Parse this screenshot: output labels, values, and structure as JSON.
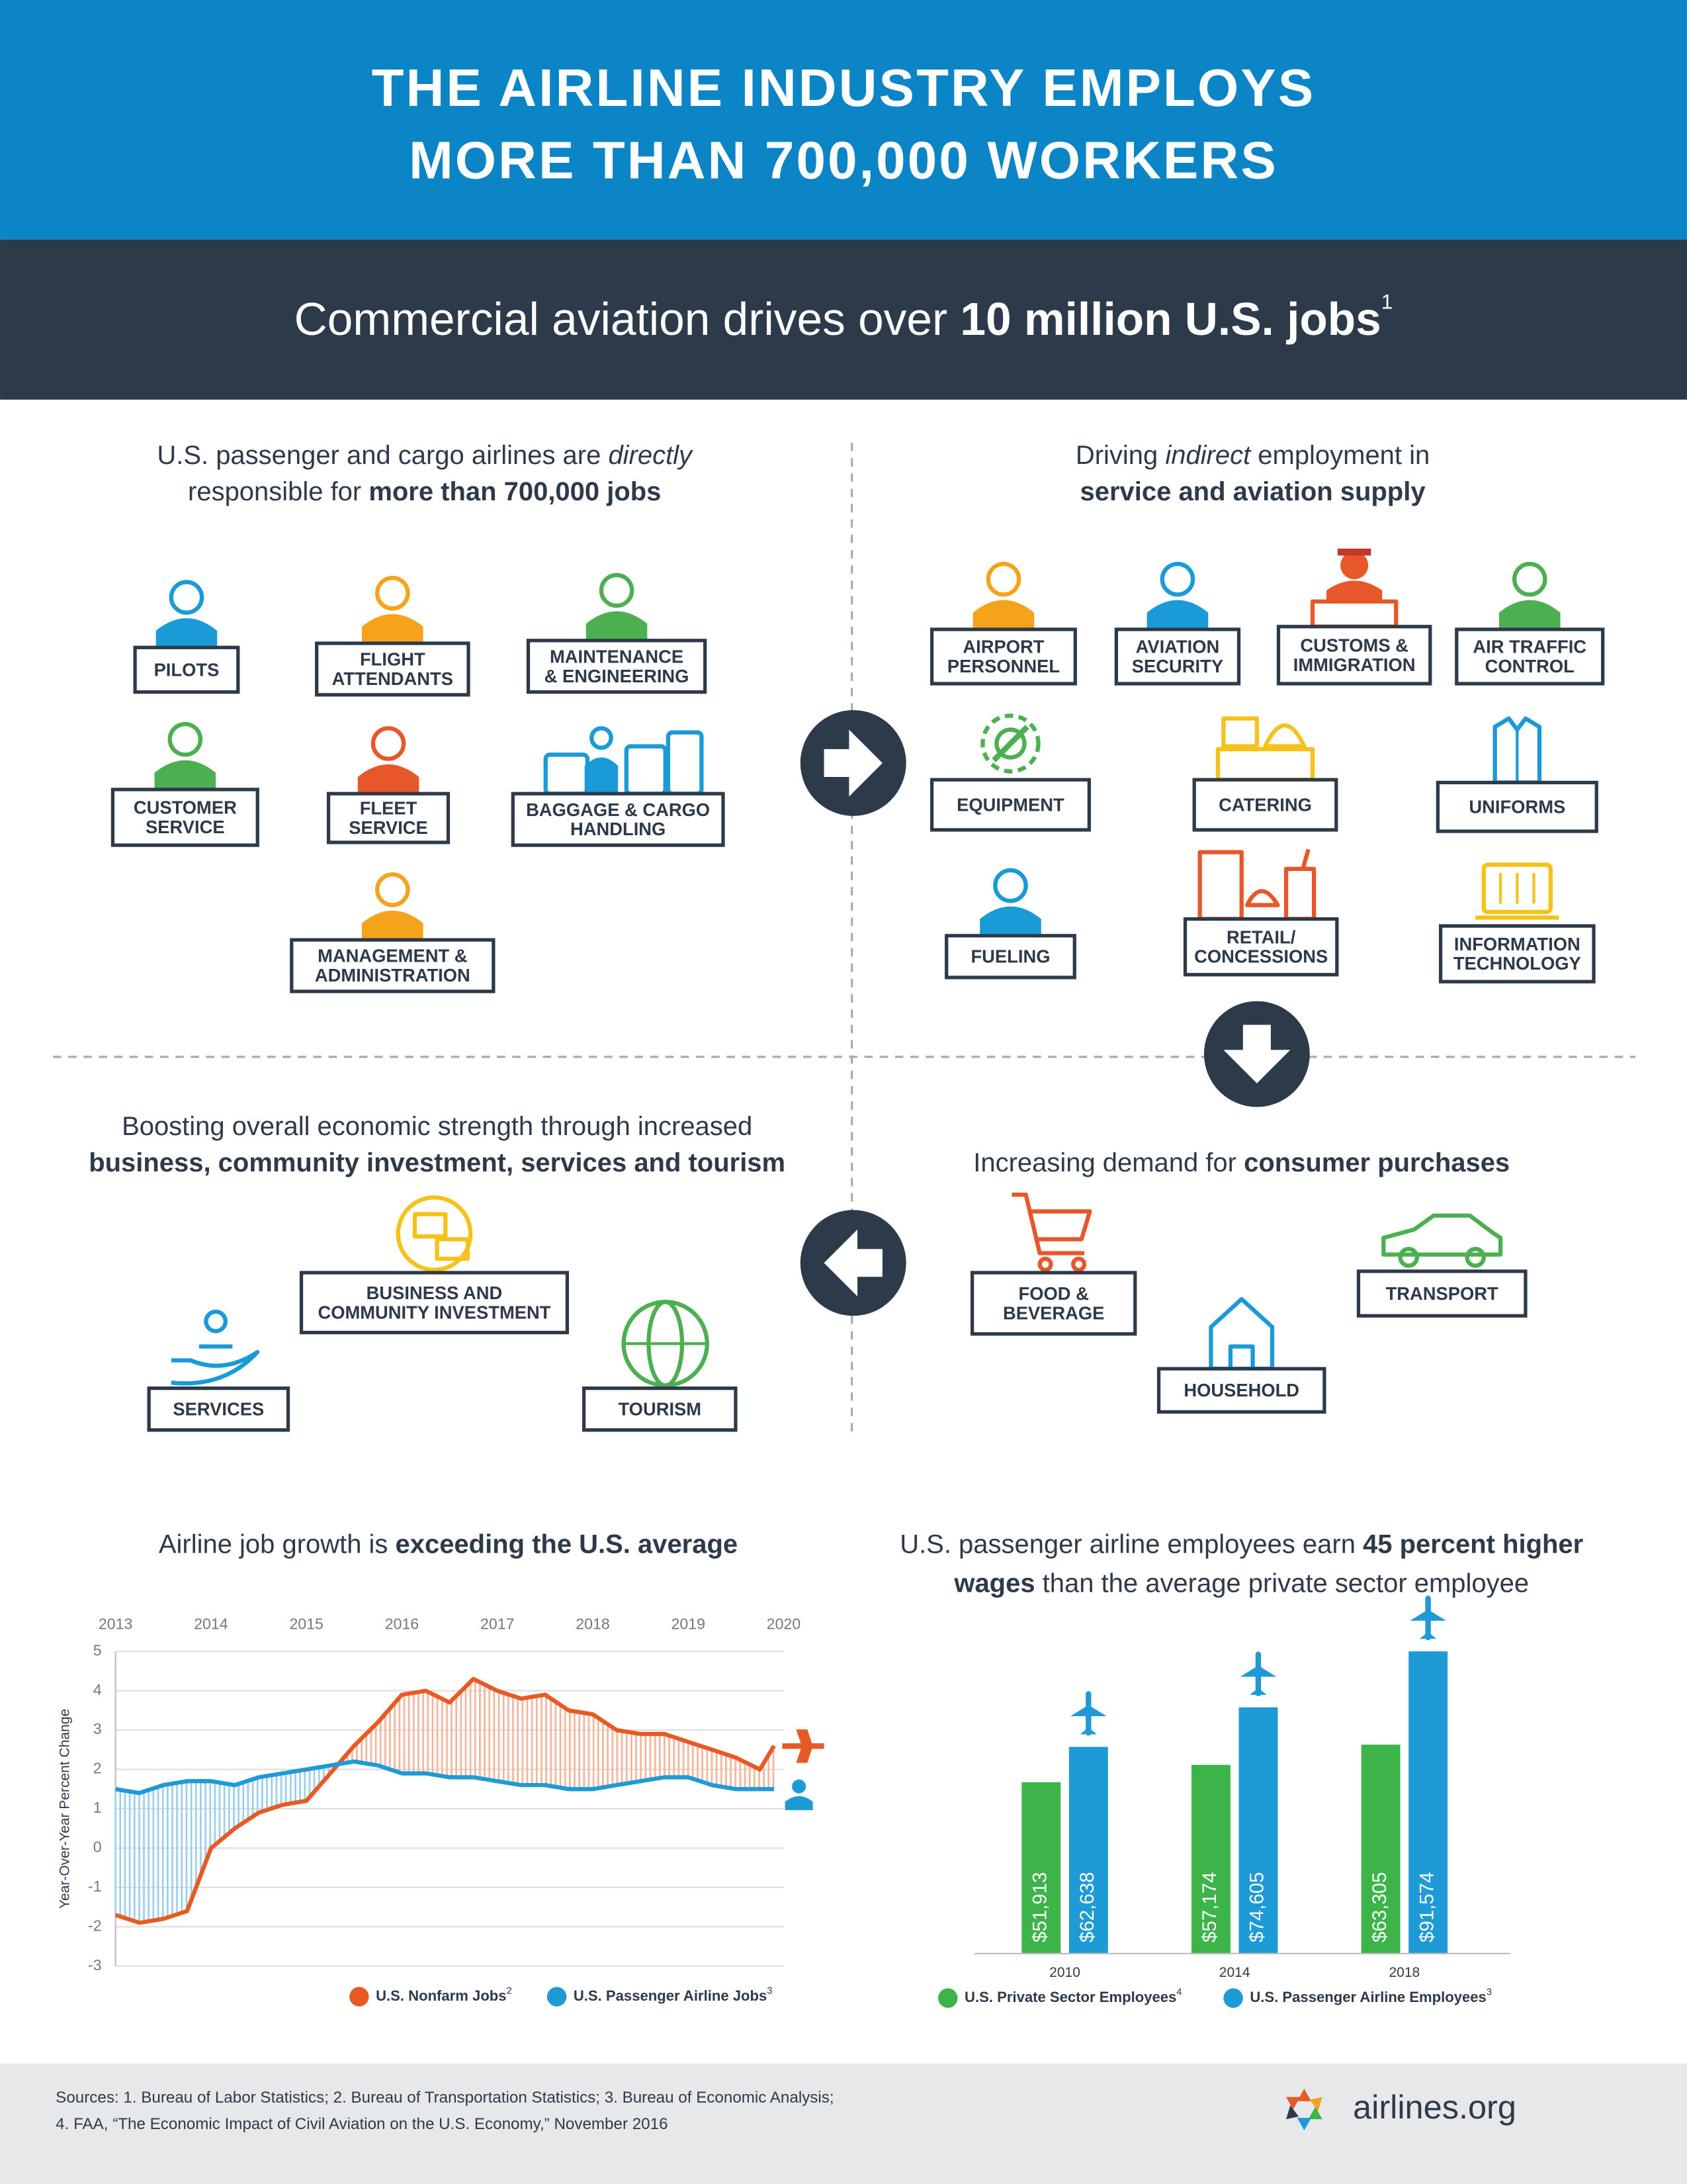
{
  "header": {
    "title": [
      "THE AIRLINE INDUSTRY EMPLOYS",
      "MORE THAN 700,000 WORKERS"
    ]
  },
  "banner": {
    "text": "Commercial aviation drives over ",
    "bold": "10 million U.S. jobs",
    "note": "1"
  },
  "quadrants": [
    {
      "intro": [
        [
          {
            "text": "U.S. passenger and cargo airlines are "
          },
          {
            "text": "directly",
            "emphasis": "italic"
          }
        ],
        [
          {
            "text": "responsible for "
          },
          {
            "text": "more than 700,000 jobs",
            "emphasis": "bold"
          }
        ]
      ],
      "items": [
        {
          "lines": [
            "PILOTS"
          ]
        },
        {
          "lines": [
            "FLIGHT",
            "ATTENDANTS"
          ]
        },
        {
          "lines": [
            "MAINTENANCE",
            "& ENGINEERING"
          ]
        },
        {
          "lines": [
            "CUSTOMER",
            "SERVICE"
          ]
        },
        {
          "lines": [
            "FLEET",
            "SERVICE"
          ]
        },
        {
          "lines": [
            "BAGGAGE & CARGO",
            "HANDLING"
          ]
        },
        {
          "lines": [
            "MANAGEMENT &",
            "ADMINISTRATION"
          ]
        }
      ]
    },
    {
      "intro": [
        [
          {
            "text": "Driving "
          },
          {
            "text": "indirect",
            "emphasis": "italic"
          },
          {
            "text": " employment in"
          }
        ],
        [
          {
            "text": "service and aviation supply",
            "emphasis": "bold"
          }
        ]
      ],
      "items": [
        {
          "lines": [
            "AIRPORT",
            "PERSONNEL"
          ]
        },
        {
          "lines": [
            "AVIATION",
            "SECURITY"
          ]
        },
        {
          "lines": [
            "CUSTOMS &",
            "IMMIGRATION"
          ]
        },
        {
          "lines": [
            "AIR TRAFFIC",
            "CONTROL"
          ]
        },
        {
          "lines": [
            "EQUIPMENT"
          ]
        },
        {
          "lines": [
            "CATERING"
          ]
        },
        {
          "lines": [
            "UNIFORMS"
          ]
        },
        {
          "lines": [
            "FUELING"
          ]
        },
        {
          "lines": [
            "RETAIL/",
            "CONCESSIONS"
          ]
        },
        {
          "lines": [
            "INFORMATION",
            "TECHNOLOGY"
          ]
        }
      ]
    },
    {
      "intro": [
        [
          {
            "text": "Boosting overall economic strength through increased"
          }
        ],
        [
          {
            "text": "business, community investment, services and tourism",
            "emphasis": "bold"
          }
        ]
      ],
      "items": [
        {
          "lines": [
            "BUSINESS AND",
            "COMMUNITY INVESTMENT"
          ]
        },
        {
          "lines": [
            "SERVICES"
          ]
        },
        {
          "lines": [
            "TOURISM"
          ]
        }
      ]
    },
    {
      "intro": [
        [
          {
            "text": "Increasing demand for "
          },
          {
            "text": "consumer purchases",
            "emphasis": "bold"
          }
        ]
      ],
      "items": [
        {
          "lines": [
            "FOOD &",
            "BEVERAGE"
          ]
        },
        {
          "lines": [
            "TRANSPORT"
          ]
        },
        {
          "lines": [
            "HOUSEHOLD"
          ]
        }
      ]
    }
  ],
  "chart_data": [
    {
      "type": "line",
      "title": [
        {
          "text": "Airline job growth is "
        },
        {
          "text": "exceeding the U.S. average",
          "emphasis": "bold"
        }
      ],
      "y_label": "Year-Over-Year Percent Change",
      "xlim": [
        2013,
        2020
      ],
      "xticks": [
        2013,
        2014,
        2015,
        2016,
        2017,
        2018,
        2019,
        2020
      ],
      "ylim": [
        -3,
        5
      ],
      "yticks": [
        -3,
        -2,
        -1,
        0,
        1,
        2,
        3,
        4,
        5
      ],
      "grid": true,
      "x": [
        2013,
        2013.25,
        2013.5,
        2013.75,
        2014,
        2014.25,
        2014.5,
        2014.75,
        2015,
        2015.25,
        2015.5,
        2015.75,
        2016,
        2016.25,
        2016.5,
        2016.75,
        2017,
        2017.25,
        2017.5,
        2017.75,
        2018,
        2018.25,
        2018.5,
        2018.75,
        2019,
        2019.25,
        2019.5,
        2019.75,
        2019.9
      ],
      "series": [
        {
          "name": "U.S. Nonfarm Jobs",
          "note": "2",
          "color": "#e85a24",
          "values": [
            -1.7,
            -1.9,
            -1.8,
            -1.6,
            0.0,
            0.5,
            0.9,
            1.1,
            1.2,
            1.9,
            2.6,
            3.2,
            3.9,
            4.0,
            3.7,
            4.3,
            4.0,
            3.8,
            3.9,
            3.5,
            3.4,
            3.0,
            2.9,
            2.9,
            2.7,
            2.5,
            2.3,
            2.0,
            2.6
          ]
        },
        {
          "name": "U.S. Passenger Airline Jobs",
          "note": "3",
          "color": "#1e9ad6",
          "values": [
            1.5,
            1.4,
            1.6,
            1.7,
            1.7,
            1.6,
            1.8,
            1.9,
            2.0,
            2.1,
            2.2,
            2.1,
            1.9,
            1.9,
            1.8,
            1.8,
            1.7,
            1.6,
            1.6,
            1.5,
            1.5,
            1.6,
            1.7,
            1.8,
            1.8,
            1.6,
            1.5,
            1.5,
            1.5
          ]
        }
      ]
    },
    {
      "type": "bar",
      "title": [
        {
          "text": "U.S. passenger airline employees earn "
        },
        {
          "text": "45 percent higher",
          "emphasis": "bold"
        },
        {
          "break": true,
          "text": "wages",
          "emphasis": "bold"
        },
        {
          "text": " than the average private sector employee"
        }
      ],
      "categories": [
        "2010",
        "2014",
        "2018"
      ],
      "ylim": [
        0,
        100000
      ],
      "series": [
        {
          "name": "U.S. Private Sector Employees",
          "note": "4",
          "color": "#3cb44a",
          "values": [
            51913,
            57174,
            63305
          ],
          "value_labels": [
            "$51,913",
            "$57,174",
            "$63,305"
          ]
        },
        {
          "name": "U.S. Passenger Airline Employees",
          "note": "3",
          "color": "#1e9ad6",
          "values": [
            62638,
            74605,
            91574
          ],
          "value_labels": [
            "$62,638",
            "$74,605",
            "$91,574"
          ]
        }
      ]
    }
  ],
  "footer": {
    "sources": [
      "Sources: 1. Bureau of Labor Statistics; 2. Bureau of Transportation Statistics; 3. Bureau of Economic Analysis;",
      "4. FAA, “The Economic Impact of Civil Aviation on the U.S. Economy,” November 2016"
    ],
    "logo": "airlines.org"
  }
}
